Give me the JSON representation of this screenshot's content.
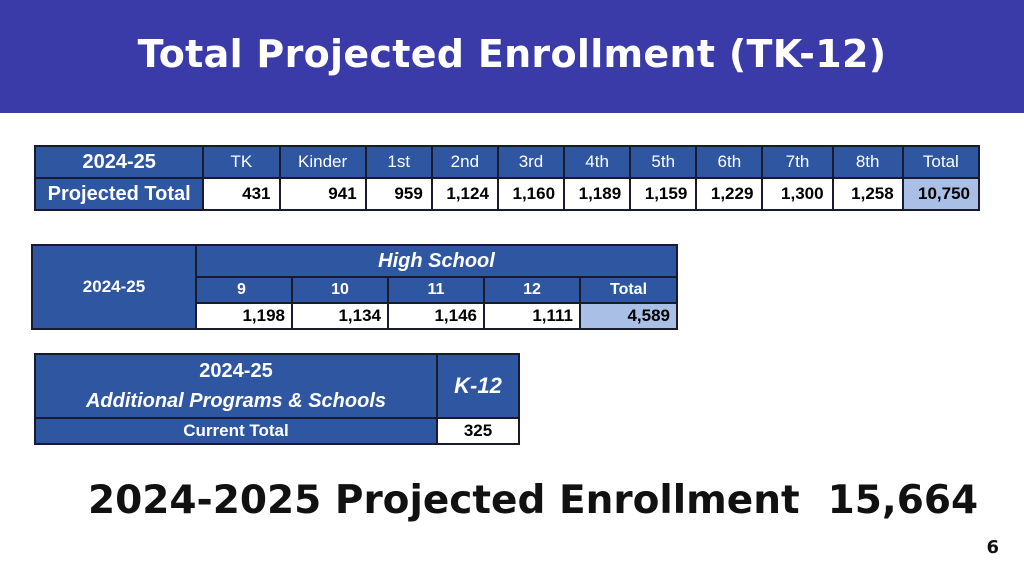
{
  "slide": {
    "title": "Total Projected Enrollment  (TK-12)",
    "page_number": "6"
  },
  "tk8_table": {
    "year": "2024-25",
    "row_label": "Projected Total",
    "columns": [
      "TK",
      "Kinder",
      "1st",
      "2nd",
      "3rd",
      "4th",
      "5th",
      "6th",
      "7th",
      "8th",
      "Total"
    ],
    "values": [
      "431",
      "941",
      "959",
      "1,124",
      "1,160",
      "1,189",
      "1,159",
      "1,229",
      "1,300",
      "1,258",
      "10,750"
    ]
  },
  "hs_table": {
    "year": "2024-25",
    "header": "High School",
    "columns": [
      "9",
      "10",
      "11",
      "12",
      "Total"
    ],
    "values": [
      "1,198",
      "1,134",
      "1,146",
      "1,111",
      "4,589"
    ]
  },
  "additional_table": {
    "year": "2024-25",
    "title": "Additional Programs & Schools",
    "column": "K-12",
    "row_label": "Current Total",
    "value": "325"
  },
  "summary": {
    "label": "2024-2025 Projected Enrollment",
    "value": "15,664"
  },
  "colors": {
    "header_bg": "#3a3aa8",
    "table_blue": "#2f56a0",
    "total_highlight": "#a9bfe6"
  }
}
